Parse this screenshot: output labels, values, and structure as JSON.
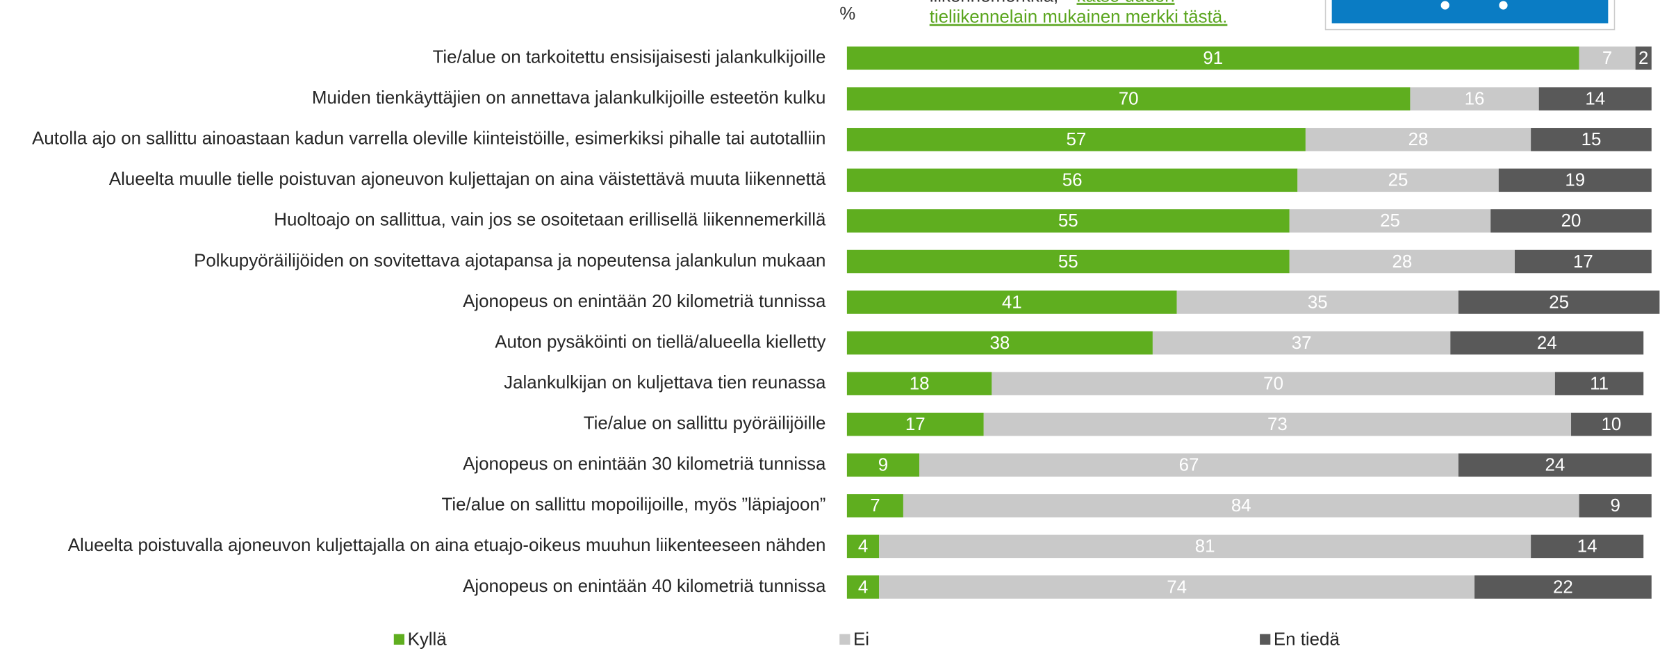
{
  "chart_data": {
    "type": "stacked_barh",
    "unit_label": "%",
    "annotation": {
      "prefix": "liikennemerkkiä,",
      "link_line1": "katso uuden",
      "link_line2": "tieliikennelain mukainen merkki tästä."
    },
    "categories": [
      "Tie/alue on tarkoitettu ensisijaisesti jalankulkijoille",
      "Muiden tienkäyttäjien on annettava jalankulkijoille esteetön kulku",
      "Autolla ajo on sallittu ainoastaan kadun varrella oleville kiinteistöille, esimerkiksi pihalle tai autotalliin",
      "Alueelta muulle tielle poistuvan ajoneuvon kuljettajan on aina väistettävä muuta liikennettä",
      "Huoltoajo on sallittua, vain jos se osoitetaan erillisellä liikennemerkillä",
      "Polkupyöräilijöiden on sovitettava ajotapansa ja nopeutensa jalankulun mukaan",
      "Ajonopeus on enintään 20 kilometriä tunnissa",
      "Auton pysäköinti on tiellä/alueella kielletty",
      "Jalankulkijan on kuljettava tien reunassa",
      "Tie/alue on sallittu pyöräilijöille",
      "Ajonopeus on enintään 30 kilometriä tunnissa",
      "Tie/alue on sallittu mopoilijoille, myös ”läpiajoon”",
      "Alueelta poistuvalla ajoneuvon kuljettajalla on aina etuajo-oikeus muuhun liikenteeseen nähden",
      "Ajonopeus on enintään 40 kilometriä tunnissa"
    ],
    "series": [
      {
        "name": "Kyllä",
        "color": "#5fae1f",
        "values": [
          91,
          70,
          57,
          56,
          55,
          55,
          41,
          38,
          18,
          17,
          9,
          7,
          4,
          4
        ]
      },
      {
        "name": "Ei",
        "color": "#c9c9c9",
        "values": [
          7,
          16,
          28,
          25,
          25,
          28,
          35,
          37,
          70,
          73,
          67,
          84,
          81,
          74
        ]
      },
      {
        "name": "En tiedä",
        "color": "#595959",
        "values": [
          2,
          14,
          15,
          19,
          20,
          17,
          25,
          24,
          11,
          10,
          24,
          9,
          14,
          22
        ]
      }
    ],
    "xlim": [
      0,
      100
    ],
    "legend": "bottom"
  }
}
